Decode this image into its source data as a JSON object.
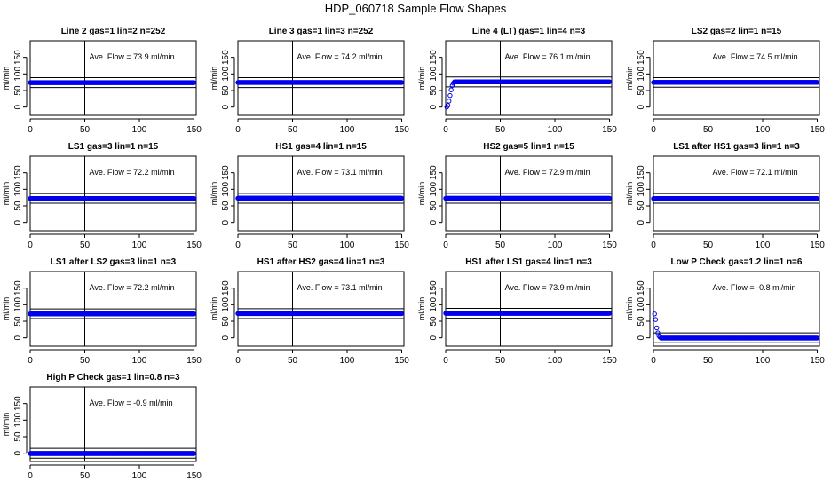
{
  "page": {
    "title": "HDP_060718  Sample Flow Shapes"
  },
  "chart_data": [
    {
      "type": "scatter",
      "title": "Line 2 gas=1 lin=2 n=252",
      "ylabel": "ml/min",
      "annotation": "Ave. Flow =  73.9  ml/min",
      "xlim": [
        0,
        152
      ],
      "ylim": [
        -25,
        200
      ],
      "xticks": [
        0,
        50,
        100,
        150
      ],
      "yticks": [
        0,
        50,
        100,
        150
      ],
      "vline": 50,
      "hlines": [
        59,
        89
      ],
      "series": [
        {
          "kind": "flat",
          "from": 0,
          "to": 150,
          "y": 73.9,
          "step": 0.5
        }
      ]
    },
    {
      "type": "scatter",
      "title": "Line 3 gas=1 lin=3 n=252",
      "ylabel": "ml/min",
      "annotation": "Ave. Flow =  74.2  ml/min",
      "xlim": [
        0,
        152
      ],
      "ylim": [
        -25,
        200
      ],
      "xticks": [
        0,
        50,
        100,
        150
      ],
      "yticks": [
        0,
        50,
        100,
        150
      ],
      "vline": 50,
      "hlines": [
        59,
        89
      ],
      "series": [
        {
          "kind": "flat",
          "from": 0,
          "to": 150,
          "y": 74.2,
          "step": 0.5
        }
      ]
    },
    {
      "type": "scatter",
      "title": "Line 4 (LT) gas=1 lin=4 n=3",
      "ylabel": "ml/min",
      "annotation": "Ave. Flow =  76.1  ml/min",
      "xlim": [
        0,
        152
      ],
      "ylim": [
        -25,
        200
      ],
      "xticks": [
        0,
        50,
        100,
        150
      ],
      "yticks": [
        0,
        50,
        100,
        150
      ],
      "vline": 50,
      "hlines": [
        61,
        91
      ],
      "series": [
        {
          "kind": "points",
          "x": [
            1,
            2,
            3,
            4,
            5,
            6,
            7,
            8
          ],
          "y": [
            0,
            5,
            18,
            35,
            52,
            65,
            72,
            75
          ]
        },
        {
          "kind": "flat",
          "from": 8,
          "to": 150,
          "y": 76.1,
          "step": 0.5
        }
      ]
    },
    {
      "type": "scatter",
      "title": "LS2 gas=2 lin=1 n=15",
      "ylabel": "ml/min",
      "annotation": "Ave. Flow =  74.5  ml/min",
      "xlim": [
        0,
        152
      ],
      "ylim": [
        -25,
        200
      ],
      "xticks": [
        0,
        50,
        100,
        150
      ],
      "yticks": [
        0,
        50,
        100,
        150
      ],
      "vline": 50,
      "hlines": [
        60,
        89
      ],
      "series": [
        {
          "kind": "flat",
          "from": 0,
          "to": 150,
          "y": 74.5,
          "step": 0.5
        }
      ]
    },
    {
      "type": "scatter",
      "title": "LS1 gas=3 lin=1 n=15",
      "ylabel": "ml/min",
      "annotation": "Ave. Flow =  72.2  ml/min",
      "xlim": [
        0,
        152
      ],
      "ylim": [
        -25,
        200
      ],
      "xticks": [
        0,
        50,
        100,
        150
      ],
      "yticks": [
        0,
        50,
        100,
        150
      ],
      "vline": 50,
      "hlines": [
        58,
        87
      ],
      "series": [
        {
          "kind": "flat",
          "from": 0,
          "to": 150,
          "y": 72.2,
          "step": 0.5
        }
      ]
    },
    {
      "type": "scatter",
      "title": "HS1 gas=4 lin=1 n=15",
      "ylabel": "ml/min",
      "annotation": "Ave. Flow =  73.1  ml/min",
      "xlim": [
        0,
        152
      ],
      "ylim": [
        -25,
        200
      ],
      "xticks": [
        0,
        50,
        100,
        150
      ],
      "yticks": [
        0,
        50,
        100,
        150
      ],
      "vline": 50,
      "hlines": [
        58,
        88
      ],
      "series": [
        {
          "kind": "flat",
          "from": 0,
          "to": 150,
          "y": 73.1,
          "step": 0.5
        }
      ]
    },
    {
      "type": "scatter",
      "title": "HS2 gas=5 lin=1 n=15",
      "ylabel": "ml/min",
      "annotation": "Ave. Flow =  72.9  ml/min",
      "xlim": [
        0,
        152
      ],
      "ylim": [
        -25,
        200
      ],
      "xticks": [
        0,
        50,
        100,
        150
      ],
      "yticks": [
        0,
        50,
        100,
        150
      ],
      "vline": 50,
      "hlines": [
        58,
        88
      ],
      "series": [
        {
          "kind": "flat",
          "from": 0,
          "to": 150,
          "y": 72.9,
          "step": 0.5
        }
      ]
    },
    {
      "type": "scatter",
      "title": "LS1 after HS1 gas=3 lin=1 n=3",
      "ylabel": "ml/min",
      "annotation": "Ave. Flow =  72.1  ml/min",
      "xlim": [
        0,
        152
      ],
      "ylim": [
        -25,
        200
      ],
      "xticks": [
        0,
        50,
        100,
        150
      ],
      "yticks": [
        0,
        50,
        100,
        150
      ],
      "vline": 50,
      "hlines": [
        58,
        87
      ],
      "series": [
        {
          "kind": "flat",
          "from": 0,
          "to": 150,
          "y": 72.1,
          "step": 0.5
        }
      ]
    },
    {
      "type": "scatter",
      "title": "LS1 after LS2 gas=3 lin=1 n=3",
      "ylabel": "ml/min",
      "annotation": "Ave. Flow =  72.2  ml/min",
      "xlim": [
        0,
        152
      ],
      "ylim": [
        -25,
        200
      ],
      "xticks": [
        0,
        50,
        100,
        150
      ],
      "yticks": [
        0,
        50,
        100,
        150
      ],
      "vline": 50,
      "hlines": [
        58,
        87
      ],
      "series": [
        {
          "kind": "flat",
          "from": 0,
          "to": 150,
          "y": 72.2,
          "step": 0.5
        }
      ]
    },
    {
      "type": "scatter",
      "title": "HS1 after HS2 gas=4 lin=1 n=3",
      "ylabel": "ml/min",
      "annotation": "Ave. Flow =  73.1  ml/min",
      "xlim": [
        0,
        152
      ],
      "ylim": [
        -25,
        200
      ],
      "xticks": [
        0,
        50,
        100,
        150
      ],
      "yticks": [
        0,
        50,
        100,
        150
      ],
      "vline": 50,
      "hlines": [
        58,
        88
      ],
      "series": [
        {
          "kind": "flat",
          "from": 0,
          "to": 150,
          "y": 73.1,
          "step": 0.5
        }
      ]
    },
    {
      "type": "scatter",
      "title": "HS1 after LS1 gas=4 lin=1 n=3",
      "ylabel": "ml/min",
      "annotation": "Ave. Flow =  73.9  ml/min",
      "xlim": [
        0,
        152
      ],
      "ylim": [
        -25,
        200
      ],
      "xticks": [
        0,
        50,
        100,
        150
      ],
      "yticks": [
        0,
        50,
        100,
        150
      ],
      "vline": 50,
      "hlines": [
        59,
        89
      ],
      "series": [
        {
          "kind": "flat",
          "from": 0,
          "to": 150,
          "y": 73.9,
          "step": 0.5
        }
      ]
    },
    {
      "type": "scatter",
      "title": "Low P Check gas=1.2 lin=1 n=6",
      "ylabel": "ml/min",
      "annotation": "Ave. Flow =  -0.8  ml/min",
      "xlim": [
        0,
        152
      ],
      "ylim": [
        -25,
        200
      ],
      "xticks": [
        0,
        50,
        100,
        150
      ],
      "yticks": [
        0,
        50,
        100,
        150
      ],
      "vline": 50,
      "hlines": [
        -15,
        15
      ],
      "series": [
        {
          "kind": "points",
          "x": [
            1,
            2,
            3,
            4,
            5,
            6,
            7
          ],
          "y": [
            72,
            55,
            30,
            15,
            6,
            2,
            0
          ]
        },
        {
          "kind": "flat",
          "from": 7,
          "to": 150,
          "y": -0.8,
          "step": 0.5
        }
      ]
    },
    {
      "type": "scatter",
      "title": "High P Check gas=1 lin=0.8 n=3",
      "ylabel": "ml/min",
      "annotation": "Ave. Flow =  -0.9  ml/min",
      "xlim": [
        0,
        152
      ],
      "ylim": [
        -25,
        200
      ],
      "xticks": [
        0,
        50,
        100,
        150
      ],
      "yticks": [
        0,
        50,
        100,
        150
      ],
      "vline": 50,
      "hlines": [
        -15,
        15
      ],
      "series": [
        {
          "kind": "flat",
          "from": 0,
          "to": 150,
          "y": -0.9,
          "step": 0.5
        }
      ]
    }
  ]
}
